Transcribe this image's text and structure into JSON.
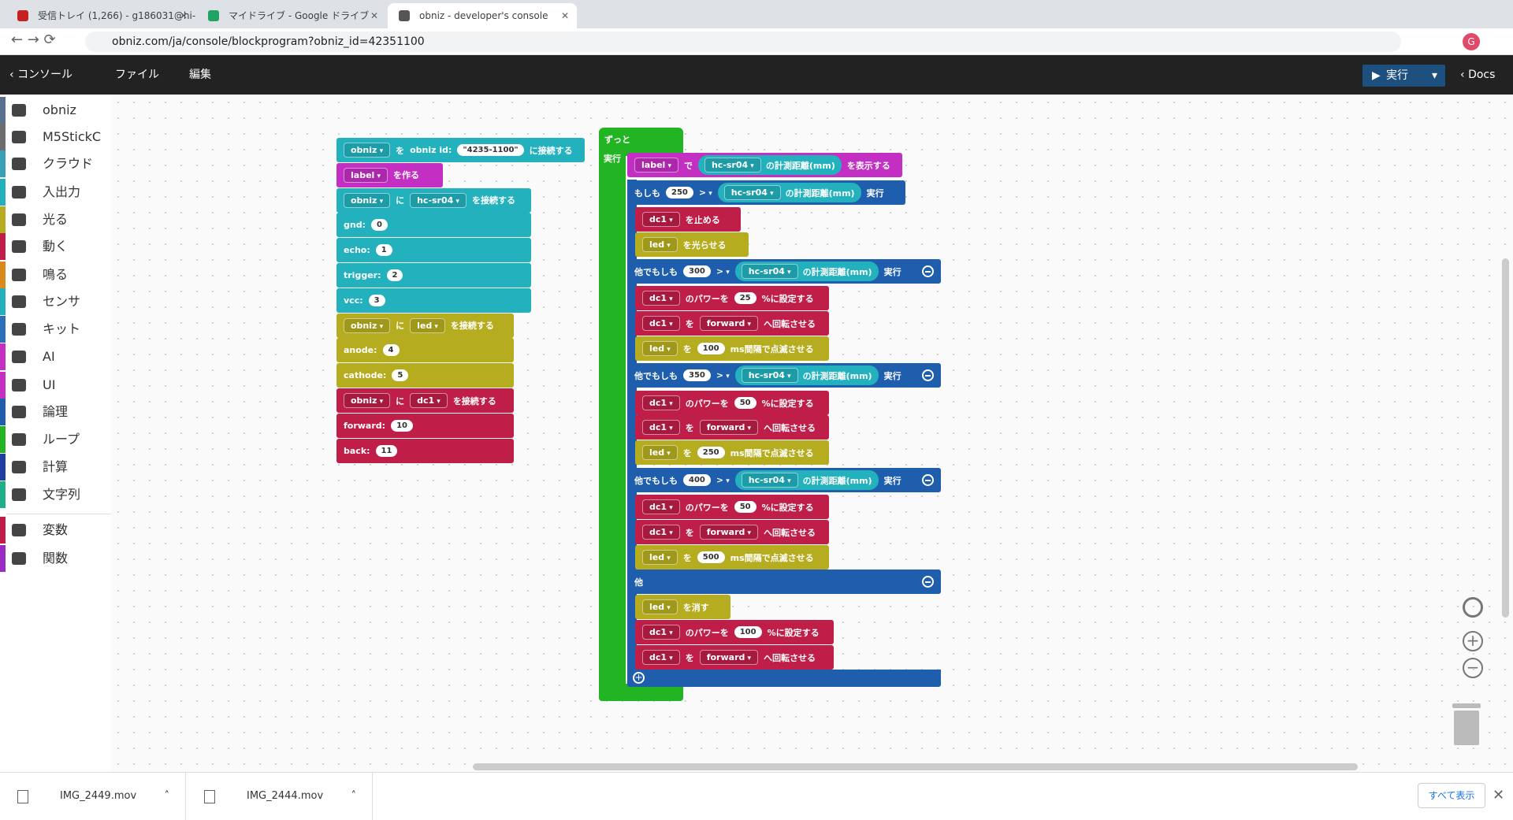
{
  "browser": {
    "tabs": [
      "受信トレイ (1,266) - g186031@hi-",
      "マイドライブ - Google ドライブ",
      "obniz - developer's console"
    ],
    "url": "obniz.com/ja/console/blockprogram?obniz_id=42351100",
    "profile": "G"
  },
  "toolbar": {
    "back": "コンソール",
    "file": "ファイル",
    "edit": "編集",
    "run": "実行",
    "docs": "Docs"
  },
  "categories": [
    {
      "label": "obniz",
      "color": "#5b6f8f"
    },
    {
      "label": "M5StickC",
      "color": "#6d6d6d"
    },
    {
      "label": "クラウド",
      "color": "#3aa0b8"
    },
    {
      "label": "入出力",
      "color": "#22b1bd"
    },
    {
      "label": "光る",
      "color": "#b5ad1f"
    },
    {
      "label": "動く",
      "color": "#bf1e48"
    },
    {
      "label": "鳴る",
      "color": "#d98a1c"
    },
    {
      "label": "センサ",
      "color": "#22b1bd"
    },
    {
      "label": "キット",
      "color": "#2a6fb8"
    },
    {
      "label": "AI",
      "color": "#c32ec3"
    },
    {
      "label": "UI",
      "color": "#c32ec3"
    },
    {
      "label": "論理",
      "color": "#1f5ead"
    },
    {
      "label": "ループ",
      "color": "#22b422"
    },
    {
      "label": "計算",
      "color": "#1f3fa0"
    },
    {
      "label": "文字列",
      "color": "#1fae8a"
    },
    {
      "label": "変数",
      "color": "#bf1e48"
    },
    {
      "label": "関数",
      "color": "#9a2ac3"
    }
  ],
  "blocks": {
    "setup": [
      {
        "color": "#22b1bd",
        "parts": [
          {
            "dd": "obniz"
          },
          "を",
          "obniz id:",
          {
            "str": "\"4235-1100\""
          },
          "に接続する"
        ]
      },
      {
        "color": "#c32ec3",
        "parts": [
          {
            "dd": "label"
          },
          "を作る"
        ]
      },
      {
        "color": "#22b1bd",
        "parts": [
          {
            "dd": "obniz"
          },
          "に",
          {
            "dd": "hc-sr04"
          },
          "を接続する"
        ]
      },
      {
        "color": "#22b1bd",
        "parts": [
          "gnd:",
          {
            "num": 0
          }
        ]
      },
      {
        "color": "#22b1bd",
        "parts": [
          "echo:",
          {
            "num": 1
          }
        ]
      },
      {
        "color": "#22b1bd",
        "parts": [
          "trigger:",
          {
            "num": 2
          }
        ]
      },
      {
        "color": "#22b1bd",
        "parts": [
          "vcc:",
          {
            "num": 3
          }
        ]
      },
      {
        "color": "#b5ad1f",
        "parts": [
          {
            "dd": "obniz"
          },
          "に",
          {
            "dd": "led"
          },
          "を接続する"
        ]
      },
      {
        "color": "#b5ad1f",
        "parts": [
          "anode:",
          {
            "num": 4
          }
        ]
      },
      {
        "color": "#b5ad1f",
        "parts": [
          "cathode:",
          {
            "num": 5
          }
        ]
      },
      {
        "color": "#bf1e48",
        "parts": [
          {
            "dd": "obniz"
          },
          "に",
          {
            "dd": "dc1"
          },
          "を接続する"
        ]
      },
      {
        "color": "#bf1e48",
        "parts": [
          "forward:",
          {
            "num": 10
          }
        ]
      },
      {
        "color": "#bf1e48",
        "parts": [
          "back:",
          {
            "num": 11
          }
        ]
      }
    ],
    "loop": {
      "color": "#22b422",
      "title": "ずっと",
      "do": "実行",
      "if_color": "#1f5ead",
      "rows": [
        {
          "color": "#c32ec3",
          "parts": [
            {
              "dd": "label"
            },
            "で",
            {
              "sensor": "hc-sr04",
              "text": "の計測距離(mm)"
            },
            "を表示する"
          ]
        },
        {
          "color": "#1f5ead",
          "parts": [
            "もしも",
            {
              "num": 250
            },
            {
              "op": ">"
            },
            {
              "sensor": "hc-sr04",
              "text": "の計測距離(mm)"
            },
            "実行"
          ]
        },
        {
          "color": "#bf1e48",
          "parts": [
            {
              "dd": "dc1"
            },
            "を止める"
          ]
        },
        {
          "color": "#b5ad1f",
          "parts": [
            {
              "dd": "led"
            },
            "を光らせる"
          ]
        },
        {
          "color": "#1f5ead",
          "collapse": true,
          "parts": [
            "他でもしも",
            {
              "num": 300
            },
            {
              "op": ">"
            },
            {
              "sensor": "hc-sr04",
              "text": "の計測距離(mm)"
            },
            "実行"
          ]
        },
        {
          "color": "#bf1e48",
          "parts": [
            {
              "dd": "dc1"
            },
            "のパワーを",
            {
              "num": 25
            },
            "%に設定する"
          ]
        },
        {
          "color": "#bf1e48",
          "parts": [
            {
              "dd": "dc1"
            },
            "を",
            {
              "dd": "forward"
            },
            "へ回転させる"
          ]
        },
        {
          "color": "#b5ad1f",
          "parts": [
            {
              "dd": "led"
            },
            "を",
            {
              "num": 100
            },
            "ms間隔で点滅させる"
          ]
        },
        {
          "color": "#1f5ead",
          "collapse": true,
          "parts": [
            "他でもしも",
            {
              "num": 350
            },
            {
              "op": ">"
            },
            {
              "sensor": "hc-sr04",
              "text": "の計測距離(mm)"
            },
            "実行"
          ]
        },
        {
          "color": "#bf1e48",
          "parts": [
            {
              "dd": "dc1"
            },
            "のパワーを",
            {
              "num": 50
            },
            "%に設定する"
          ]
        },
        {
          "color": "#bf1e48",
          "parts": [
            {
              "dd": "dc1"
            },
            "を",
            {
              "dd": "forward"
            },
            "へ回転させる"
          ]
        },
        {
          "color": "#b5ad1f",
          "parts": [
            {
              "dd": "led"
            },
            "を",
            {
              "num": 250
            },
            "ms間隔で点滅させる"
          ]
        },
        {
          "color": "#1f5ead",
          "collapse": true,
          "parts": [
            "他でもしも",
            {
              "num": 400
            },
            {
              "op": ">"
            },
            {
              "sensor": "hc-sr04",
              "text": "の計測距離(mm)"
            },
            "実行"
          ]
        },
        {
          "color": "#bf1e48",
          "parts": [
            {
              "dd": "dc1"
            },
            "のパワーを",
            {
              "num": 50
            },
            "%に設定する"
          ]
        },
        {
          "color": "#bf1e48",
          "parts": [
            {
              "dd": "dc1"
            },
            "を",
            {
              "dd": "forward"
            },
            "へ回転させる"
          ]
        },
        {
          "color": "#b5ad1f",
          "parts": [
            {
              "dd": "led"
            },
            "を",
            {
              "num": 500
            },
            "ms間隔で点滅させる"
          ]
        },
        {
          "color": "#1f5ead",
          "collapse": true,
          "parts": [
            "他"
          ]
        },
        {
          "color": "#b5ad1f",
          "parts": [
            {
              "dd": "led"
            },
            "を消す"
          ]
        },
        {
          "color": "#bf1e48",
          "parts": [
            {
              "dd": "dc1"
            },
            "のパワーを",
            {
              "num": 100
            },
            "%に設定する"
          ]
        },
        {
          "color": "#bf1e48",
          "parts": [
            {
              "dd": "dc1"
            },
            "を",
            {
              "dd": "forward"
            },
            "へ回転させる"
          ]
        }
      ]
    }
  },
  "downloads": {
    "files": [
      "IMG_2449.mov",
      "IMG_2444.mov"
    ],
    "show_all": "すべて表示"
  }
}
